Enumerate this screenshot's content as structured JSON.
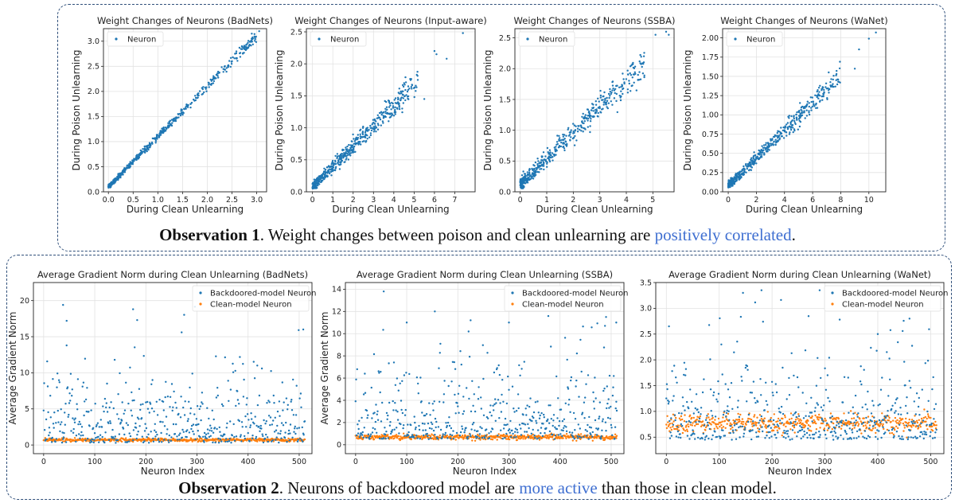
{
  "observations": [
    {
      "bold": "Observation 1",
      "text": ". Weight changes between poison and clean unlearning are ",
      "highlight": "positively correlated",
      "end": "."
    },
    {
      "bold": "Observation 2",
      "text": ". Neurons of backdoored model are ",
      "highlight": "more active",
      "end": " than those in clean model."
    }
  ],
  "colors": {
    "blue": "#1f77b4",
    "orange": "#ff7f0e",
    "frame": "#2f4f7a",
    "highlight": "#3f6fd1"
  },
  "chart_data": [
    {
      "type": "scatter",
      "title": "Weight Changes of Neurons (BadNets)",
      "xlabel": "During Clean Unlearning",
      "ylabel": "During Poison Unlearning",
      "xlim": [
        -0.1,
        3.2
      ],
      "ylim": [
        0,
        3.25
      ],
      "xticks": [
        0.0,
        0.5,
        1.0,
        1.5,
        2.0,
        2.5,
        3.0
      ],
      "yticks": [
        0.0,
        0.5,
        1.0,
        1.5,
        2.0,
        2.5,
        3.0
      ],
      "xtick_labels": [
        "0.0",
        "0.5",
        "1.0",
        "1.5",
        "2.0",
        "2.5",
        "3.0"
      ],
      "ytick_labels": [
        "0.0",
        "0.5",
        "1.0",
        "1.5",
        "2.0",
        "2.5",
        "3.0"
      ],
      "grid": true,
      "legend_position": "top-left",
      "series": [
        {
          "name": "Neuron",
          "n": 500,
          "xmax": 3.0,
          "slope": 1.0,
          "intercept": 0.1,
          "noise": 0.05,
          "outliers": [
            [
              2.5,
              2.6
            ],
            [
              2.7,
              2.9
            ],
            [
              2.9,
              3.15
            ],
            [
              3.05,
              3.2
            ]
          ]
        }
      ]
    },
    {
      "type": "scatter",
      "title": "Weight Changes of Neurons (Input-aware)",
      "xlabel": "During Clean Unlearning",
      "ylabel": "During Poison Unlearning",
      "xlim": [
        -0.3,
        8.0
      ],
      "ylim": [
        0,
        2.55
      ],
      "xticks": [
        0,
        1,
        2,
        3,
        4,
        5,
        6,
        7
      ],
      "yticks": [
        0.0,
        0.5,
        1.0,
        1.5,
        2.0,
        2.5
      ],
      "xtick_labels": [
        "0",
        "1",
        "2",
        "3",
        "4",
        "5",
        "6",
        "7"
      ],
      "ytick_labels": [
        "0.0",
        "0.5",
        "1.0",
        "1.5",
        "2.0",
        "2.5"
      ],
      "grid": true,
      "legend_position": "top-left",
      "series": [
        {
          "name": "Neuron",
          "n": 500,
          "xmax": 5.2,
          "slope": 0.32,
          "intercept": 0.08,
          "noise": 0.09,
          "outliers": [
            [
              6.0,
              2.2
            ],
            [
              6.1,
              2.15
            ],
            [
              6.6,
              2.08
            ],
            [
              7.4,
              2.48
            ],
            [
              5.5,
              1.45
            ]
          ]
        }
      ]
    },
    {
      "type": "scatter",
      "title": "Weight Changes of Neurons (SSBA)",
      "xlabel": "During Clean Unlearning",
      "ylabel": "During Poison Unlearning",
      "xlim": [
        -0.2,
        5.8
      ],
      "ylim": [
        0,
        2.65
      ],
      "xticks": [
        0,
        1,
        2,
        3,
        4,
        5
      ],
      "yticks": [
        0.0,
        0.5,
        1.0,
        1.5,
        2.0,
        2.5
      ],
      "xtick_labels": [
        "0",
        "1",
        "2",
        "3",
        "4",
        "5"
      ],
      "ytick_labels": [
        "0.0",
        "0.5",
        "1.0",
        "1.5",
        "2.0",
        "2.5"
      ],
      "grid": true,
      "legend_position": "top-left",
      "series": [
        {
          "name": "Neuron",
          "n": 500,
          "xmax": 4.7,
          "slope": 0.42,
          "intercept": 0.12,
          "noise": 0.12,
          "outliers": [
            [
              5.1,
              2.55
            ],
            [
              5.5,
              2.6
            ],
            [
              5.6,
              2.55
            ]
          ]
        }
      ]
    },
    {
      "type": "scatter",
      "title": "Weight Changes of Neurons (WaNet)",
      "xlabel": "During Clean Unlearning",
      "ylabel": "During Poison Unlearning",
      "xlim": [
        -0.4,
        11.2
      ],
      "ylim": [
        0,
        2.12
      ],
      "xticks": [
        0,
        2,
        4,
        6,
        8,
        10
      ],
      "yticks": [
        0.0,
        0.25,
        0.5,
        0.75,
        1.0,
        1.25,
        1.5,
        1.75,
        2.0
      ],
      "xtick_labels": [
        "0",
        "2",
        "4",
        "6",
        "8",
        "10"
      ],
      "ytick_labels": [
        "0.00",
        "0.25",
        "0.50",
        "0.75",
        "1.00",
        "1.25",
        "1.50",
        "1.75",
        "2.00"
      ],
      "grid": true,
      "legend_position": "top-left",
      "series": [
        {
          "name": "Neuron",
          "n": 500,
          "xmax": 8.0,
          "slope": 0.18,
          "intercept": 0.08,
          "noise": 0.07,
          "outliers": [
            [
              9.3,
              1.85
            ],
            [
              10.0,
              1.99
            ],
            [
              10.5,
              2.07
            ],
            [
              9.0,
              1.6
            ]
          ]
        }
      ]
    },
    {
      "type": "scatter",
      "title": "Average Gradient Norm during Clean Unlearning (BadNets)",
      "xlabel": "Neuron Index",
      "ylabel": "Average Gradient Norm",
      "xlim": [
        -20,
        525
      ],
      "ylim": [
        -1.2,
        22.5
      ],
      "xticks": [
        0,
        100,
        200,
        300,
        400,
        500
      ],
      "yticks": [
        0,
        5,
        10,
        15,
        20
      ],
      "xtick_labels": [
        "0",
        "100",
        "200",
        "300",
        "400",
        "500"
      ],
      "ytick_labels": [
        "0",
        "5",
        "10",
        "15",
        "20"
      ],
      "grid": true,
      "legend_position": "top-right",
      "series": [
        {
          "name": "Backdoored-model Neuron",
          "kind": "backdoor",
          "base": 0.3,
          "spread": 6.0,
          "max": 19.5,
          "spikes": [
            [
              38,
              19.4
            ],
            [
              45,
              17.2
            ],
            [
              175,
              18.8
            ],
            [
              183,
              17.3
            ],
            [
              270,
              15.6
            ],
            [
              508,
              16.0
            ]
          ]
        },
        {
          "name": "Clean-model Neuron",
          "kind": "clean",
          "mean": 0.7,
          "jitter": 0.25
        }
      ]
    },
    {
      "type": "scatter",
      "title": "Average Gradient Norm during Clean Unlearning (SSBA)",
      "xlabel": "Neuron Index",
      "ylabel": "Average Gradient Norm",
      "xlim": [
        -20,
        525
      ],
      "ylim": [
        -0.8,
        14.6
      ],
      "xticks": [
        0,
        100,
        200,
        300,
        400,
        500
      ],
      "yticks": [
        0,
        2,
        4,
        6,
        8,
        10,
        12,
        14
      ],
      "xtick_labels": [
        "0",
        "100",
        "200",
        "300",
        "400",
        "500"
      ],
      "ytick_labels": [
        "0",
        "2",
        "4",
        "6",
        "8",
        "10",
        "12",
        "14"
      ],
      "grid": true,
      "legend_position": "top-right",
      "series": [
        {
          "name": "Backdoored-model Neuron",
          "kind": "backdoor",
          "base": 0.5,
          "spread": 4.2,
          "max": 13.8,
          "spikes": [
            [
              55,
              13.8
            ],
            [
              100,
              11.0
            ],
            [
              155,
              12.0
            ],
            [
              225,
              11.2
            ],
            [
              300,
              11.0
            ],
            [
              345,
              12.6
            ],
            [
              490,
              11.5
            ],
            [
              510,
              11.0
            ]
          ]
        },
        {
          "name": "Clean-model Neuron",
          "kind": "clean",
          "mean": 0.7,
          "jitter": 0.28
        }
      ]
    },
    {
      "type": "scatter",
      "title": "Average Gradient Norm during Clean Unlearning (WaNet)",
      "xlabel": "Neuron Index",
      "ylabel": "",
      "xlim": [
        -20,
        525
      ],
      "ylim": [
        0.18,
        3.5
      ],
      "xticks": [
        0,
        100,
        200,
        300,
        400,
        500
      ],
      "yticks": [
        0.5,
        1.0,
        1.5,
        2.0,
        2.5,
        3.0,
        3.5
      ],
      "xtick_labels": [
        "0",
        "100",
        "200",
        "300",
        "400",
        "500"
      ],
      "ytick_labels": [
        "0.5",
        "1.0",
        "1.5",
        "2.0",
        "2.5",
        "3.0",
        "3.5"
      ],
      "grid": true,
      "legend_position": "top-right",
      "series": [
        {
          "name": "Backdoored-model Neuron",
          "kind": "backdoor",
          "base": 0.45,
          "spread": 0.9,
          "max": 3.35,
          "spikes": [
            [
              5,
              2.65
            ],
            [
              180,
              3.35
            ],
            [
              290,
              3.35
            ],
            [
              400,
              2.5
            ],
            [
              460,
              2.8
            ]
          ]
        },
        {
          "name": "Clean-model Neuron",
          "kind": "clean",
          "mean": 0.78,
          "jitter": 0.22
        }
      ]
    }
  ]
}
